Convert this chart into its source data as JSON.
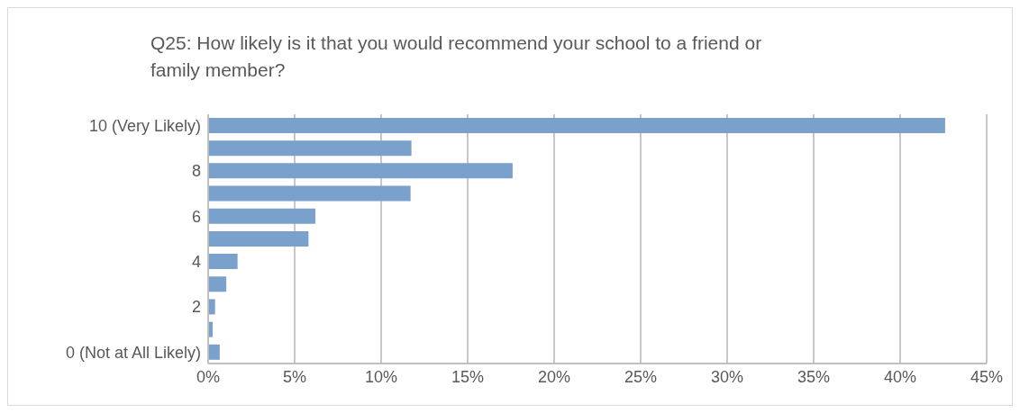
{
  "chart_data": {
    "type": "bar",
    "orientation": "horizontal",
    "title": "Q25: How likely is it that you would recommend your school to a friend or family member?",
    "categories": [
      "10 (Very Likely)",
      null,
      "8",
      null,
      "6",
      null,
      "4",
      null,
      "2",
      null,
      "0 (Not at All Likely)"
    ],
    "values": [
      42.6,
      11.75,
      17.6,
      11.7,
      6.2,
      5.8,
      1.7,
      1.05,
      0.4,
      0.26,
      0.67
    ],
    "color": "#7aa0cc",
    "xlim": [
      0,
      45
    ],
    "xticks": [
      {
        "value": 0,
        "label": "0%"
      },
      {
        "value": 5,
        "label": "5%"
      },
      {
        "value": 10,
        "label": "10%"
      },
      {
        "value": 15,
        "label": "15%"
      },
      {
        "value": 20,
        "label": "20%"
      },
      {
        "value": 25,
        "label": "25%"
      },
      {
        "value": 30,
        "label": "30%"
      },
      {
        "value": 35,
        "label": "35%"
      },
      {
        "value": 40,
        "label": "40%"
      },
      {
        "value": 45,
        "label": "45%"
      }
    ],
    "grid": "x",
    "legend": false
  }
}
